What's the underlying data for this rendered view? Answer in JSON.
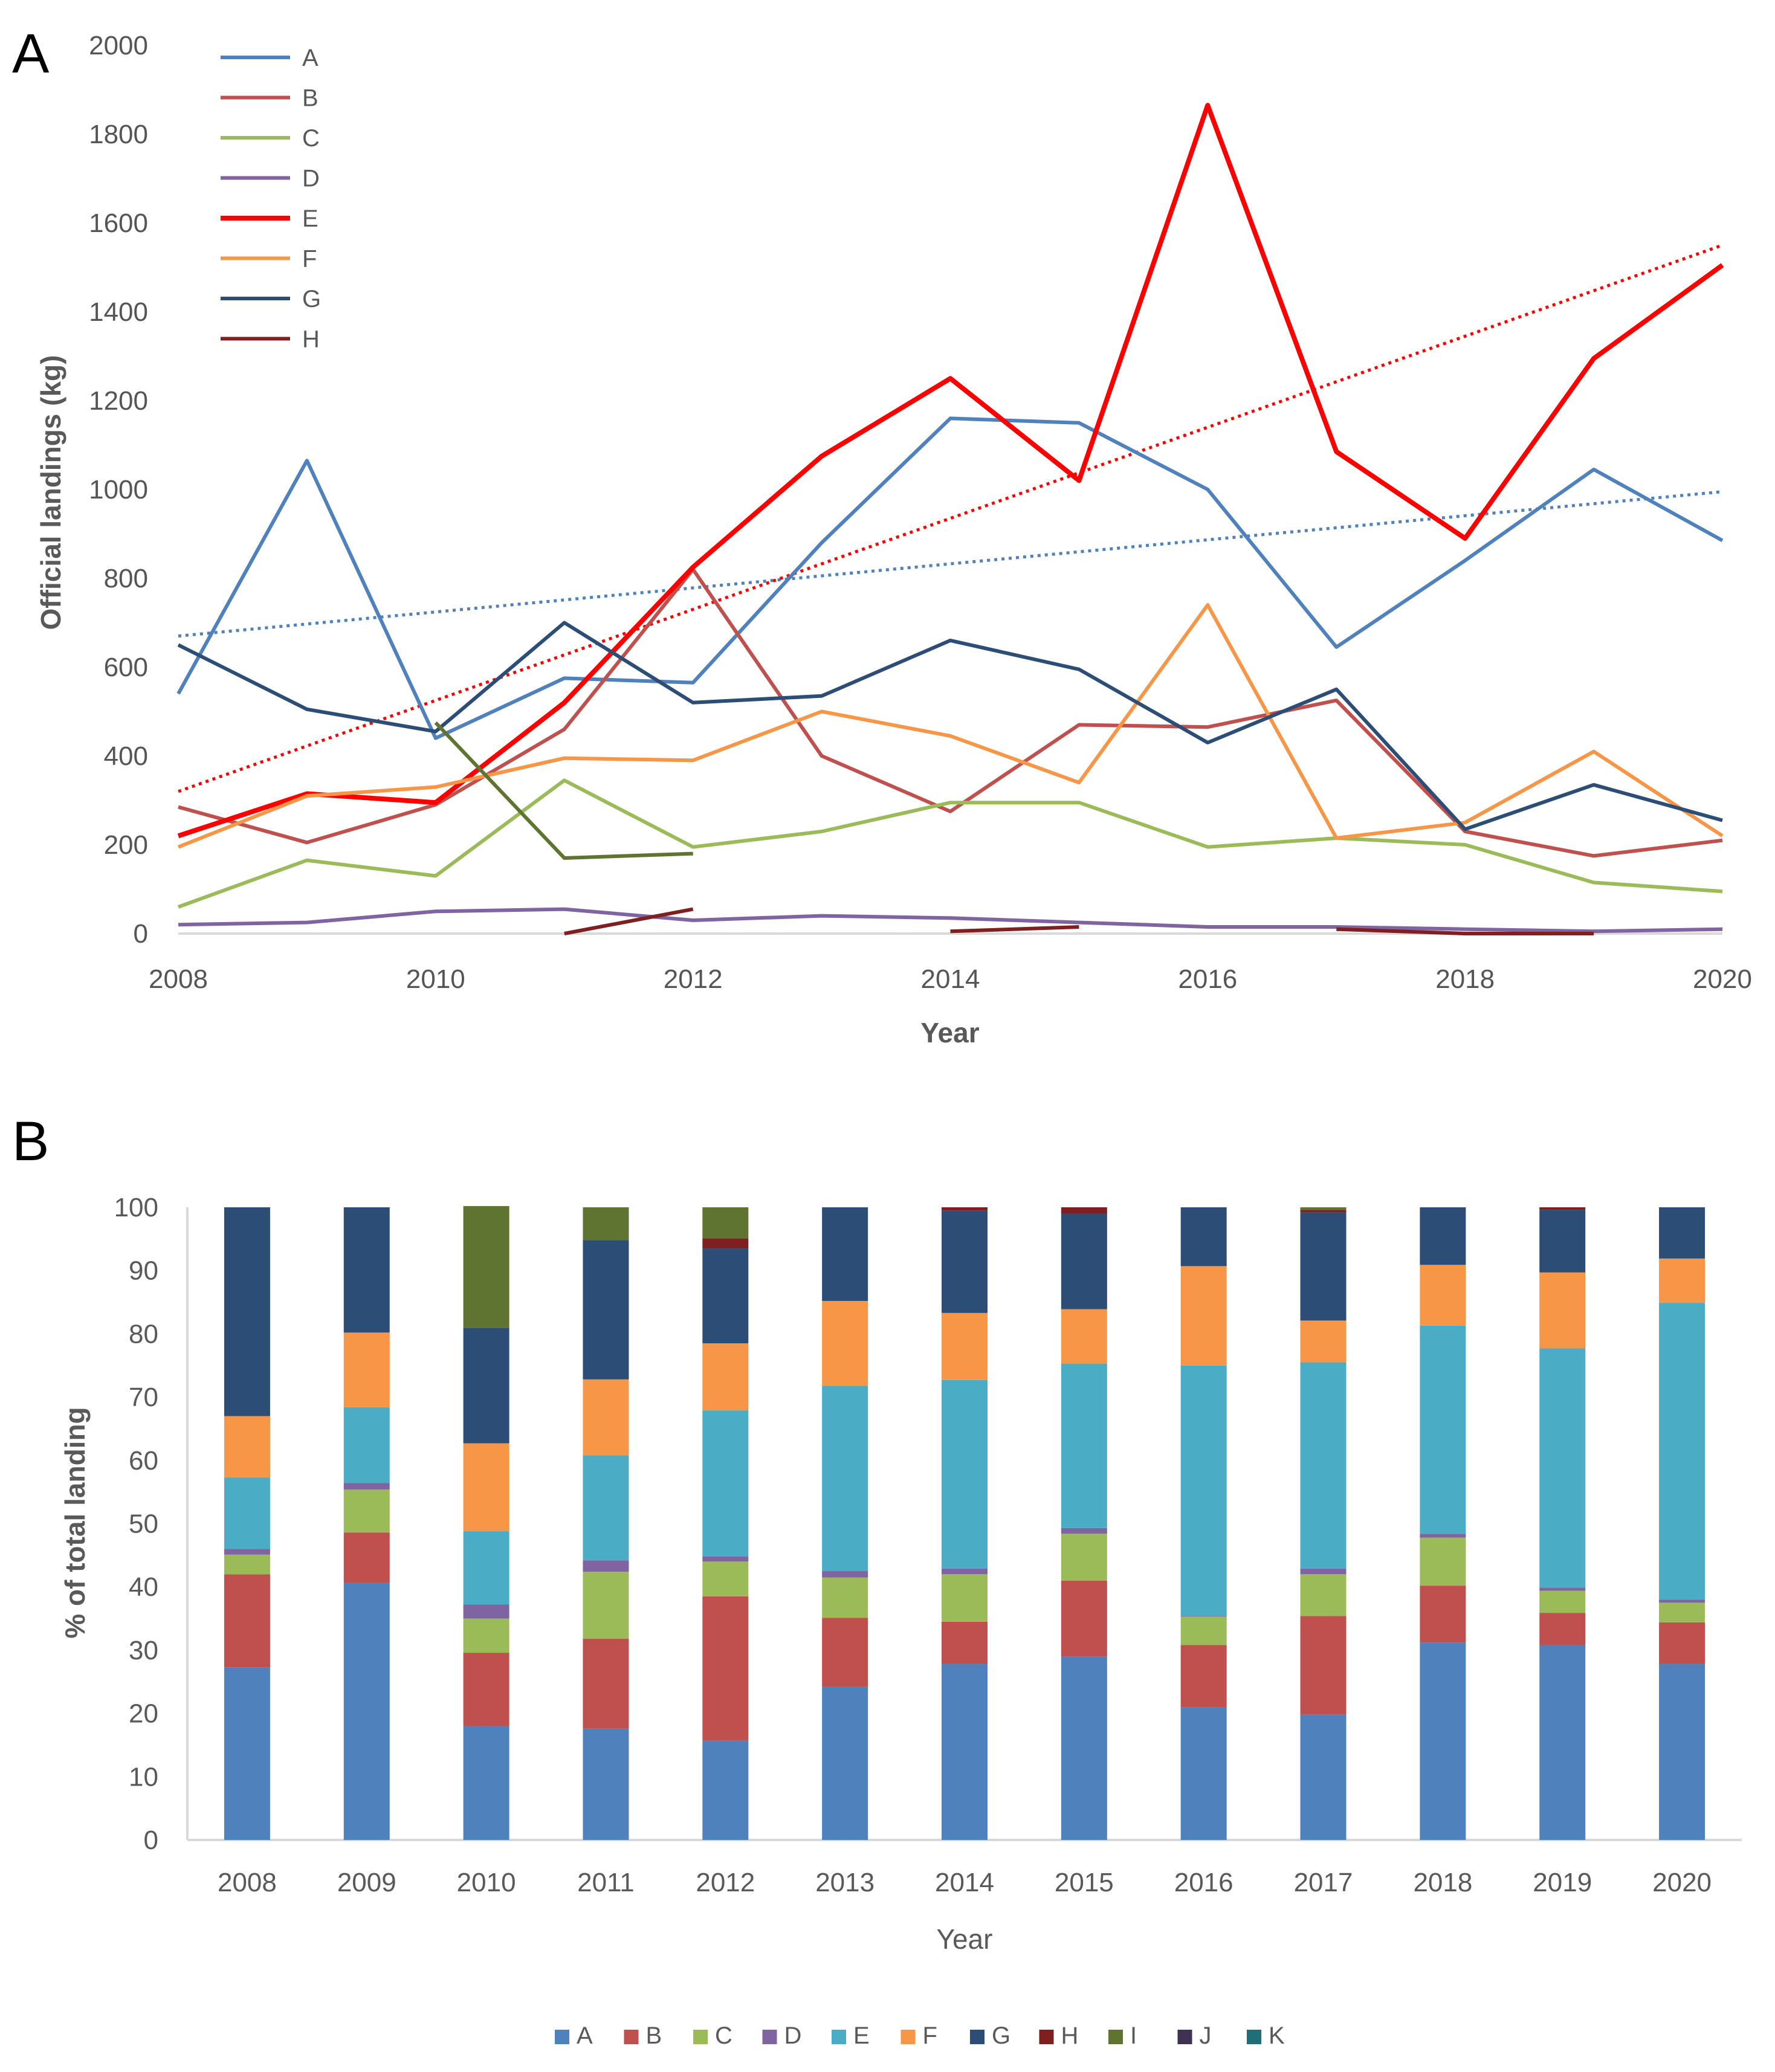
{
  "colors": {
    "A": "#4f81bd",
    "B": "#c0504d",
    "C": "#9bbb59",
    "D": "#8064a2",
    "E": "#ff0000",
    "F": "#f79646",
    "G": "#2c4d75",
    "H": "#7f1f1f",
    "I": "#5e7430",
    "J": "#3f3151",
    "K": "#1f6e78",
    "E_bar": "#4bacc6",
    "axis": "#d9d9d9"
  },
  "chart_data": [
    {
      "panel": "A",
      "type": "line",
      "title": "",
      "xlabel": "Year",
      "ylabel": "Official landings  (kg)",
      "xlim": [
        2008,
        2020
      ],
      "ylim": [
        0,
        2000
      ],
      "xticks": [
        "2008",
        "2010",
        "2012",
        "2014",
        "2016",
        "2018",
        "2020"
      ],
      "yticks": [
        "0",
        "200",
        "400",
        "600",
        "800",
        "1000",
        "1200",
        "1400",
        "1600",
        "1800",
        "2000"
      ],
      "legend": [
        "A",
        "B",
        "C",
        "D",
        "E",
        "F",
        "G",
        "H"
      ],
      "legend_position": "top-left",
      "series": [
        {
          "name": "A",
          "x": [
            2008,
            2009,
            2010,
            2011,
            2012,
            2013,
            2014,
            2015,
            2016,
            2017,
            2018,
            2019,
            2020
          ],
          "values": [
            540,
            1065,
            440,
            575,
            565,
            880,
            1160,
            1150,
            1000,
            645,
            840,
            1045,
            885
          ]
        },
        {
          "name": "B",
          "x": [
            2008,
            2009,
            2010,
            2011,
            2012,
            2013,
            2014,
            2015,
            2016,
            2017,
            2018,
            2019,
            2020
          ],
          "values": [
            285,
            205,
            290,
            460,
            820,
            400,
            275,
            470,
            465,
            525,
            230,
            175,
            210
          ]
        },
        {
          "name": "C",
          "x": [
            2008,
            2009,
            2010,
            2011,
            2012,
            2013,
            2014,
            2015,
            2016,
            2017,
            2018,
            2019,
            2020
          ],
          "values": [
            60,
            165,
            130,
            345,
            195,
            230,
            295,
            295,
            195,
            215,
            200,
            115,
            95
          ]
        },
        {
          "name": "D",
          "x": [
            2008,
            2009,
            2010,
            2011,
            2012,
            2013,
            2014,
            2015,
            2016,
            2017,
            2018,
            2019,
            2020
          ],
          "values": [
            20,
            25,
            50,
            55,
            30,
            40,
            35,
            25,
            15,
            15,
            10,
            5,
            10
          ]
        },
        {
          "name": "E",
          "x": [
            2008,
            2009,
            2010,
            2011,
            2012,
            2013,
            2014,
            2015,
            2016,
            2017,
            2018,
            2019,
            2020
          ],
          "values": [
            220,
            315,
            295,
            520,
            825,
            1075,
            1250,
            1020,
            1865,
            1085,
            890,
            1295,
            1505
          ]
        },
        {
          "name": "F",
          "x": [
            2008,
            2009,
            2010,
            2011,
            2012,
            2013,
            2014,
            2015,
            2016,
            2017,
            2018,
            2019,
            2020
          ],
          "values": [
            195,
            310,
            330,
            395,
            390,
            500,
            445,
            340,
            740,
            215,
            250,
            410,
            220
          ]
        },
        {
          "name": "G",
          "x": [
            2008,
            2009,
            2010,
            2011,
            2012,
            2013,
            2014,
            2015,
            2016,
            2017,
            2018,
            2019,
            2020
          ],
          "values": [
            650,
            505,
            455,
            700,
            520,
            535,
            660,
            595,
            430,
            550,
            235,
            335,
            255
          ]
        },
        {
          "name": "H",
          "x": [
            2011,
            2012
          ],
          "values": [
            0,
            55
          ]
        },
        {
          "name": "H",
          "x": [
            2014,
            2015
          ],
          "values": [
            5,
            15
          ]
        },
        {
          "name": "H",
          "x": [
            2017,
            2018,
            2019
          ],
          "values": [
            10,
            0,
            0
          ]
        },
        {
          "name": "I",
          "x": [
            2010,
            2011,
            2012
          ],
          "values": [
            475,
            170,
            180
          ]
        }
      ],
      "trendlines": [
        {
          "series": "A",
          "style": "dotted",
          "x": [
            2008,
            2020
          ],
          "values": [
            670,
            995
          ]
        },
        {
          "series": "E",
          "style": "dotted",
          "x": [
            2008,
            2020
          ],
          "values": [
            320,
            1550
          ]
        }
      ]
    },
    {
      "panel": "B",
      "type": "bar",
      "stacked": true,
      "title": "",
      "xlabel": "Year",
      "ylabel": "% of total landing",
      "ylim": [
        0,
        100
      ],
      "yticks": [
        "0",
        "10",
        "20",
        "30",
        "40",
        "50",
        "60",
        "70",
        "80",
        "90",
        "100"
      ],
      "categories": [
        "2008",
        "2009",
        "2010",
        "2011",
        "2012",
        "2013",
        "2014",
        "2015",
        "2016",
        "2017",
        "2018",
        "2019",
        "2020"
      ],
      "legend": [
        "A",
        "B",
        "C",
        "D",
        "E",
        "F",
        "G",
        "H",
        "I",
        "J",
        "K"
      ],
      "legend_position": "bottom",
      "series": [
        {
          "name": "A",
          "values": [
            27.3,
            40.6,
            18.0,
            17.6,
            15.7,
            24.2,
            27.8,
            29.0,
            21.0,
            19.8,
            31.2,
            30.8,
            27.8
          ]
        },
        {
          "name": "B",
          "values": [
            14.7,
            8.0,
            11.6,
            14.2,
            22.8,
            10.9,
            6.7,
            12.0,
            9.8,
            15.6,
            9.0,
            5.1,
            6.6
          ]
        },
        {
          "name": "C",
          "values": [
            3.1,
            6.8,
            5.4,
            10.6,
            5.5,
            6.4,
            7.5,
            7.4,
            4.5,
            6.6,
            7.6,
            3.5,
            3.1
          ]
        },
        {
          "name": "D",
          "values": [
            0.9,
            1.0,
            2.2,
            1.8,
            0.8,
            1.0,
            0.9,
            0.9,
            0.1,
            0.9,
            0.6,
            0.5,
            0.5
          ]
        },
        {
          "name": "E",
          "values": [
            11.3,
            12.0,
            11.6,
            16.6,
            23.1,
            29.3,
            29.8,
            26.0,
            39.6,
            32.6,
            32.9,
            37.8,
            46.9
          ]
        },
        {
          "name": "F",
          "values": [
            9.7,
            11.8,
            13.9,
            12.0,
            10.6,
            13.4,
            10.6,
            8.6,
            15.7,
            6.6,
            9.6,
            12.0,
            7.0
          ]
        },
        {
          "name": "G",
          "values": [
            33.0,
            19.8,
            18.2,
            22.0,
            15.0,
            14.8,
            16.2,
            15.1,
            9.3,
            17.1,
            9.1,
            9.9,
            8.1
          ]
        },
        {
          "name": "H",
          "values": [
            0,
            0,
            0,
            0,
            1.6,
            0,
            0.5,
            1.0,
            0,
            0.4,
            0,
            0.4,
            0
          ]
        },
        {
          "name": "I",
          "values": [
            0,
            0,
            19.3,
            5.2,
            4.9,
            0,
            0,
            0,
            0,
            0.4,
            0,
            0,
            0
          ]
        },
        {
          "name": "J",
          "values": [
            0,
            0,
            0,
            0,
            0,
            0,
            0,
            0,
            0,
            0,
            0,
            0,
            0
          ]
        },
        {
          "name": "K",
          "values": [
            0,
            0,
            0,
            0,
            0,
            0,
            0,
            0,
            0,
            0,
            0,
            0,
            0
          ]
        }
      ]
    }
  ],
  "panelA": {
    "label": "A"
  },
  "panelB": {
    "label": "B"
  }
}
